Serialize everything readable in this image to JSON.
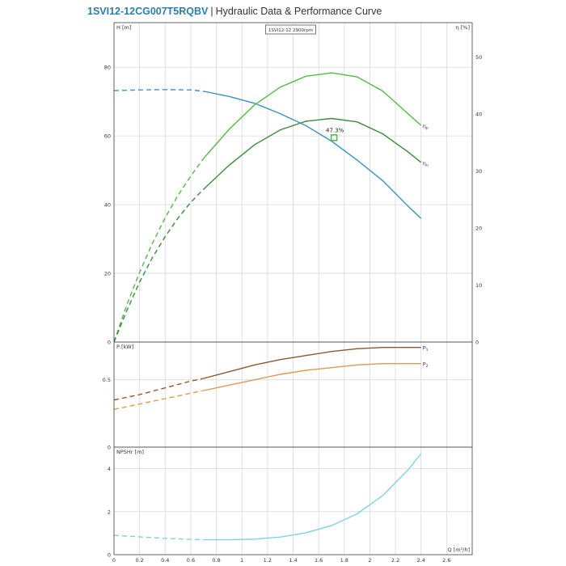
{
  "header": {
    "model": "1SVI12-12CG007T5RQBV",
    "separator": "|",
    "subtitle": "Hydraulic Data & Performance Curve"
  },
  "colors": {
    "head": "#3a93c2",
    "eta_p": "#56b84a",
    "eta_u": "#3c8a3c",
    "p1": "#8a5a2e",
    "p2": "#de9a4e",
    "npsh": "#7fd2de",
    "grid": "#d9d9d9",
    "frame": "#555555",
    "text": "#333333"
  },
  "chart_data": {
    "type": "line",
    "speed_label": "1SVI12-12 2900rpm",
    "x_axis": {
      "label": "Q [m³/h]",
      "range": [
        0,
        2.8
      ],
      "ticks": [
        "0",
        "0.2",
        "0.4",
        "0.6",
        "0.8",
        "1",
        "1.2",
        "1.4",
        "1.6",
        "1.8",
        "2",
        "2.2",
        "2.4",
        "2.6"
      ],
      "tick_values": [
        0,
        0.2,
        0.4,
        0.6,
        0.8,
        1.0,
        1.2,
        1.4,
        1.6,
        1.8,
        2.0,
        2.2,
        2.4,
        2.6
      ]
    },
    "panels": [
      {
        "id": "head",
        "ylabel": "H [m]",
        "y2label": "η [%]",
        "ylim": [
          0,
          93
        ],
        "yticks": [
          0,
          20,
          40,
          60,
          80
        ],
        "ytick_labels": [
          "0",
          "20",
          "40",
          "60",
          "80"
        ],
        "y2lim": [
          0,
          56
        ],
        "y2ticks": [
          0,
          10,
          20,
          30,
          40,
          50
        ],
        "y2tick_labels": [
          "0",
          "10",
          "20",
          "30",
          "40",
          "50"
        ],
        "series": [
          {
            "key": "head",
            "axis": "left",
            "dash_until": 0.7,
            "x": [
              0,
              0.2,
              0.4,
              0.6,
              0.7,
              0.9,
              1.1,
              1.3,
              1.5,
              1.7,
              1.9,
              2.1,
              2.3,
              2.4
            ],
            "y": [
              73.2,
              73.4,
              73.5,
              73.4,
              73,
              71.5,
              69.5,
              66.5,
              63,
              58.5,
              53,
              47,
              39.5,
              36
            ]
          },
          {
            "key": "eta_p",
            "axis": "right",
            "label": "ηp",
            "dash_until": 0.7,
            "x": [
              0,
              0.1,
              0.2,
              0.3,
              0.4,
              0.5,
              0.6,
              0.7,
              0.9,
              1.1,
              1.3,
              1.5,
              1.7,
              1.9,
              2.1,
              2.3,
              2.4
            ],
            "y": [
              0,
              6.5,
              12.2,
              17.3,
              21.8,
              25.7,
              29.1,
              32.2,
              37.3,
              41.6,
              44.7,
              46.6,
              47.2,
              46.5,
              44,
              40,
              38
            ]
          },
          {
            "key": "eta_u",
            "axis": "right",
            "label": "ηu",
            "dash_until": 0.7,
            "x": [
              0,
              0.1,
              0.2,
              0.3,
              0.4,
              0.5,
              0.6,
              0.7,
              0.9,
              1.1,
              1.3,
              1.5,
              1.7,
              1.9,
              2.1,
              2.3,
              2.4
            ],
            "y": [
              0,
              5.5,
              10.5,
              14.8,
              18.5,
              21.7,
              24.5,
              26.8,
              31,
              34.6,
              37.2,
              38.7,
              39.2,
              38.6,
              36.5,
              33.3,
              31.5
            ]
          }
        ],
        "annotation": {
          "text": "47.3%",
          "x": 1.72,
          "y": 59.5
        }
      },
      {
        "id": "power",
        "ylabel": "P [kW]",
        "ylim": [
          0,
          0.78
        ],
        "yticks": [
          0,
          0.5
        ],
        "ytick_labels": [
          "0",
          "0.5"
        ],
        "series": [
          {
            "key": "p1",
            "label": "P1",
            "dash_until": 0.7,
            "x": [
              0,
              0.2,
              0.4,
              0.6,
              0.7,
              0.9,
              1.1,
              1.3,
              1.5,
              1.7,
              1.9,
              2.1,
              2.3,
              2.4
            ],
            "y": [
              0.35,
              0.39,
              0.44,
              0.49,
              0.51,
              0.56,
              0.61,
              0.65,
              0.68,
              0.71,
              0.73,
              0.74,
              0.74,
              0.74
            ]
          },
          {
            "key": "p2",
            "label": "P2",
            "dash_until": 0.7,
            "x": [
              0,
              0.2,
              0.4,
              0.6,
              0.7,
              0.9,
              1.1,
              1.3,
              1.5,
              1.7,
              1.9,
              2.1,
              2.3,
              2.4
            ],
            "y": [
              0.28,
              0.32,
              0.36,
              0.4,
              0.42,
              0.46,
              0.5,
              0.54,
              0.57,
              0.59,
              0.61,
              0.62,
              0.62,
              0.62
            ]
          }
        ]
      },
      {
        "id": "npsh",
        "ylabel": "NPSHr [m]",
        "ylim": [
          0,
          5
        ],
        "yticks": [
          0,
          2,
          4
        ],
        "ytick_labels": [
          "0",
          "2",
          "4"
        ],
        "series": [
          {
            "key": "npsh",
            "dash_until": 0.7,
            "x": [
              0,
              0.2,
              0.4,
              0.6,
              0.7,
              0.9,
              1.1,
              1.3,
              1.5,
              1.7,
              1.9,
              2.1,
              2.3,
              2.4
            ],
            "y": [
              0.9,
              0.83,
              0.76,
              0.71,
              0.69,
              0.69,
              0.72,
              0.82,
              1.02,
              1.35,
              1.9,
              2.75,
              3.95,
              4.7
            ]
          }
        ]
      }
    ]
  }
}
